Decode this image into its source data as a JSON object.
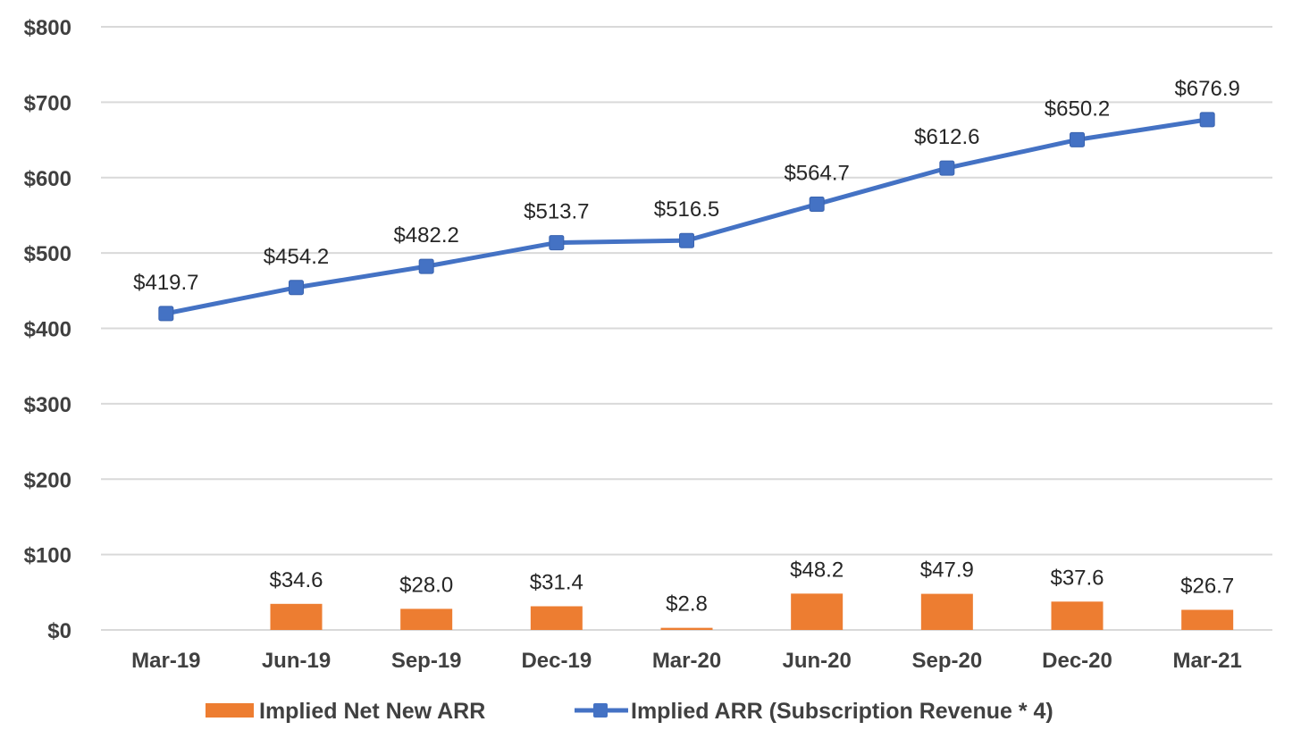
{
  "chart_data": {
    "type": "bar+line",
    "categories": [
      "Mar-19",
      "Jun-19",
      "Sep-19",
      "Dec-19",
      "Mar-20",
      "Jun-20",
      "Sep-20",
      "Dec-20",
      "Mar-21"
    ],
    "series": [
      {
        "name": "Implied Net New ARR",
        "type": "bar",
        "color": "#ED7D31",
        "values": [
          null,
          34.6,
          28.0,
          31.4,
          2.8,
          48.2,
          47.9,
          37.6,
          26.7
        ],
        "labels": [
          "",
          "$34.6",
          "$28.0",
          "$31.4",
          "$2.8",
          "$48.2",
          "$47.9",
          "$37.6",
          "$26.7"
        ]
      },
      {
        "name": "Implied ARR (Subscription Revenue * 4)",
        "type": "line",
        "marker": "square",
        "color": "#4472C4",
        "values": [
          419.7,
          454.2,
          482.2,
          513.7,
          516.5,
          564.7,
          612.6,
          650.2,
          676.9
        ],
        "labels": [
          "$419.7",
          "$454.2",
          "$482.2",
          "$513.7",
          "$516.5",
          "$564.7",
          "$612.6",
          "$650.2",
          "$676.9"
        ]
      }
    ],
    "yticks": [
      0,
      100,
      200,
      300,
      400,
      500,
      600,
      700,
      800
    ],
    "ytick_labels": [
      "$0",
      "$100",
      "$200",
      "$300",
      "$400",
      "$500",
      "$600",
      "$700",
      "$800"
    ],
    "ylim": [
      0,
      800
    ],
    "grid": true,
    "legend_position": "bottom"
  }
}
